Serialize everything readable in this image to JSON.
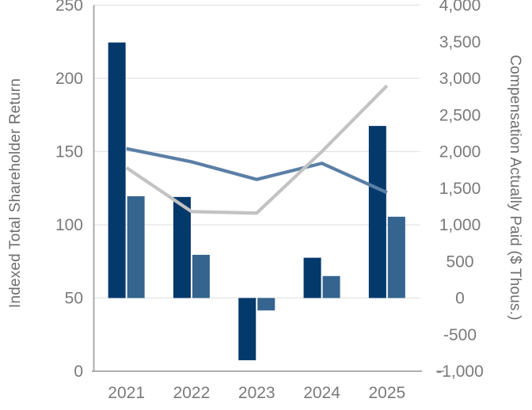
{
  "chart_data": {
    "type": "combo-bar-line",
    "title": "",
    "categories": [
      "2021",
      "2022",
      "2023",
      "2024",
      "2025"
    ],
    "left_axis": {
      "label": "Indexed Total Shareholder Return",
      "min": 0,
      "max": 250,
      "tick_step": 50,
      "ticks": [
        "0",
        "50",
        "100",
        "150",
        "200",
        "250"
      ]
    },
    "right_axis": {
      "label": "Compensation Actually Paid ($ Thous.)",
      "min": -1000,
      "max": 4000,
      "tick_step": 500,
      "ticks": [
        "-1,000",
        "-500",
        "0",
        "500",
        "1,000",
        "1,500",
        "2,000",
        "2,500",
        "3,000",
        "3,500",
        "4,000"
      ]
    },
    "bar_series": [
      {
        "name": "dark-navy-bars",
        "axis": "right",
        "color": "#04396C",
        "values": [
          3490,
          1380,
          -850,
          550,
          2350
        ]
      },
      {
        "name": "medium-blue-bars",
        "axis": "right",
        "color": "#35648F",
        "values": [
          1390,
          590,
          -170,
          300,
          1110
        ]
      }
    ],
    "line_series": [
      {
        "name": "steel-blue-line",
        "axis": "left",
        "color": "#5B7FA6",
        "values": [
          152,
          143,
          131,
          142,
          122
        ]
      },
      {
        "name": "gray-line",
        "axis": "left",
        "color": "#C3C3C3",
        "values": [
          139,
          109,
          108,
          150,
          195
        ]
      }
    ],
    "legend": "none",
    "grid": {
      "show": true,
      "color": "#E3E3E3",
      "at_left_values": [
        50,
        100,
        150,
        200,
        250
      ]
    },
    "bar_baseline_right_value": 0,
    "colors": {
      "axis_line": "#A3A3A3",
      "tick_label": "#7A7A7A",
      "axis_title": "#6E6E6E",
      "background": "#FFFFFF"
    }
  }
}
